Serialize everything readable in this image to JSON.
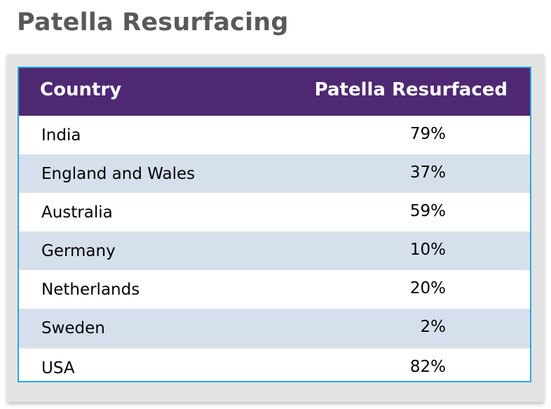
{
  "title": "Patella Resurfacing",
  "table": {
    "headers": {
      "country": "Country",
      "resurfaced": "Patella Resurfaced"
    },
    "rows": [
      {
        "country": "India",
        "value": "79%"
      },
      {
        "country": "England and Wales",
        "value": "37%"
      },
      {
        "country": "Australia",
        "value": "59%"
      },
      {
        "country": "Germany",
        "value": "10%"
      },
      {
        "country": "Netherlands",
        "value": "20%"
      },
      {
        "country": "Sweden",
        "value": "2%"
      },
      {
        "country": "USA",
        "value": "82%"
      }
    ]
  },
  "colors": {
    "header_bg": "#4f2874",
    "row_shade": "#d6dfec",
    "frame_border": "#2aa8e0",
    "title_text": "#595959"
  }
}
